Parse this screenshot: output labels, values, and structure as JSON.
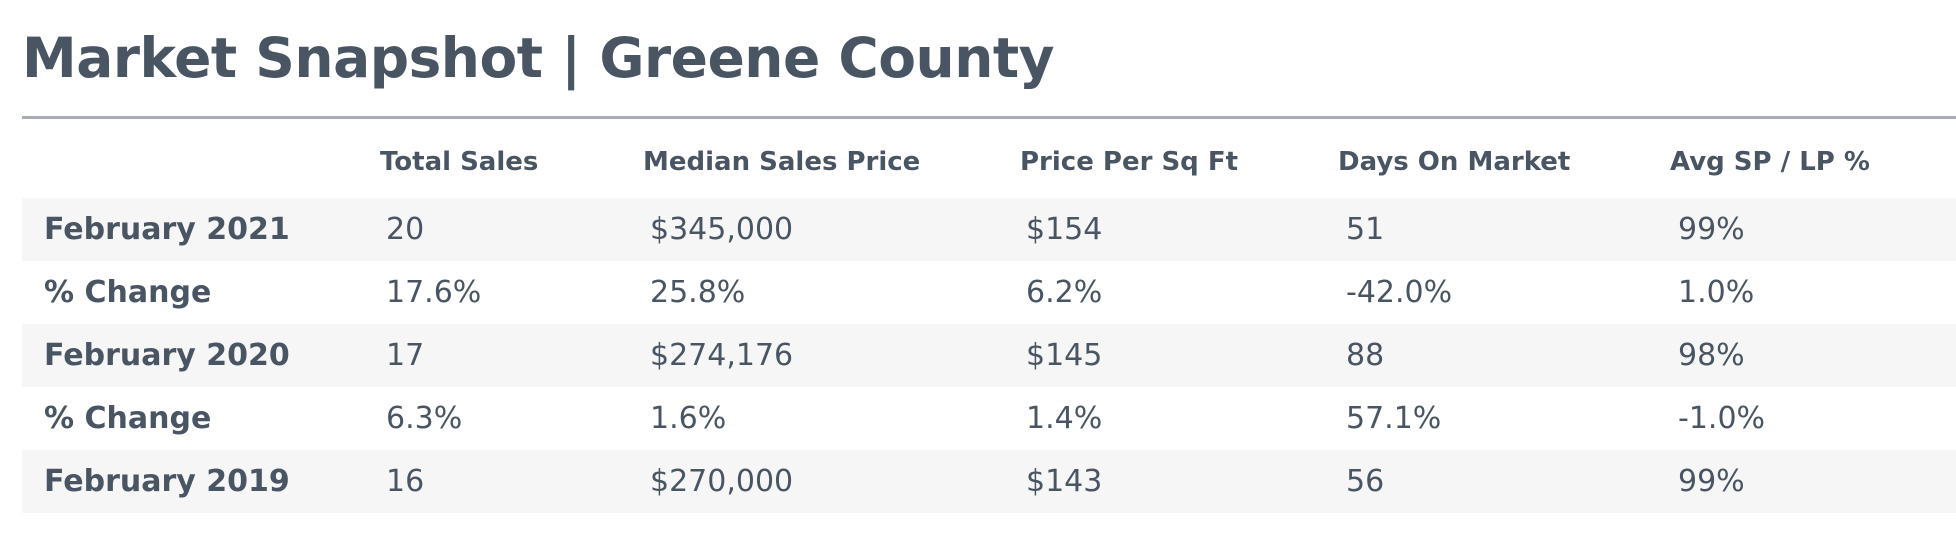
{
  "page": {
    "title": "Market Snapshot | Greene County"
  },
  "table": {
    "columns": [
      "Total Sales",
      "Median Sales Price",
      "Price Per Sq Ft",
      "Days On Market",
      "Avg SP / LP %"
    ],
    "rows": [
      {
        "label": "February 2021",
        "values": [
          "20",
          "$345,000",
          "$154",
          "51",
          "99%"
        ]
      },
      {
        "label": "% Change",
        "values": [
          "17.6%",
          "25.8%",
          "6.2%",
          "-42.0%",
          "1.0%"
        ]
      },
      {
        "label": "February 2020",
        "values": [
          "17",
          "$274,176",
          "$145",
          "88",
          "98%"
        ]
      },
      {
        "label": "% Change",
        "values": [
          "6.3%",
          "1.6%",
          "1.4%",
          "57.1%",
          "-1.0%"
        ]
      },
      {
        "label": "February 2019",
        "values": [
          "16",
          "$270,000",
          "$143",
          "56",
          "99%"
        ]
      }
    ]
  },
  "colors": {
    "text": "#4a5563",
    "divider": "#a8adb5",
    "row_shade": "#f6f6f6"
  }
}
